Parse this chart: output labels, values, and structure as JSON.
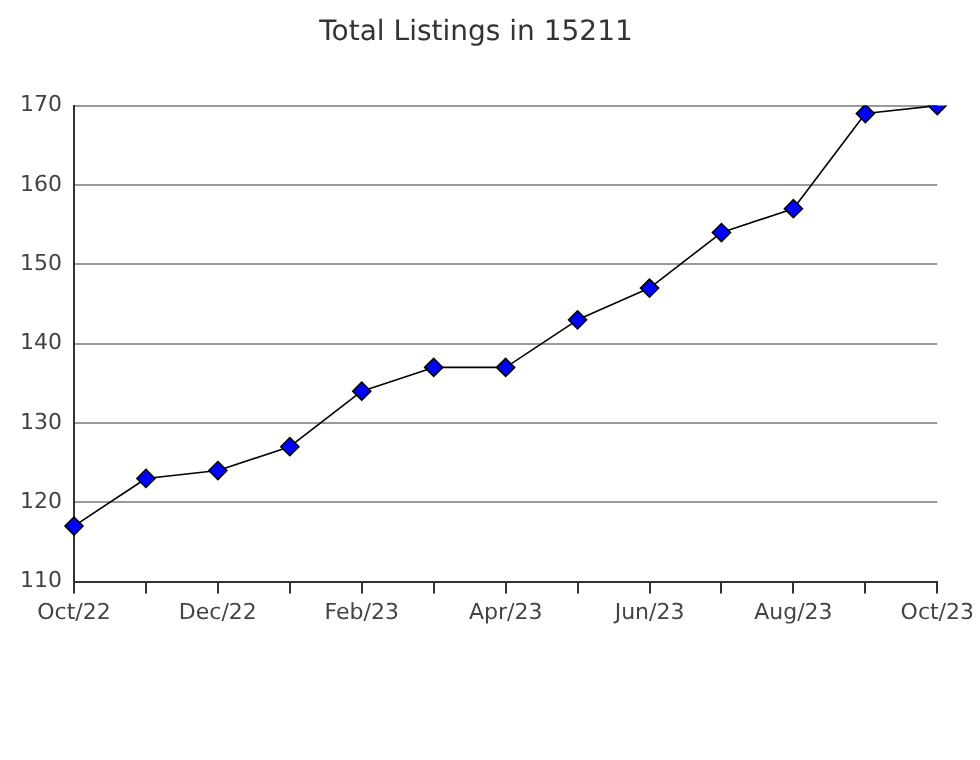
{
  "chart_data": {
    "type": "line",
    "title": "Total Listings in 15211",
    "categories": [
      "Oct/22",
      null,
      "Dec/22",
      null,
      "Feb/23",
      null,
      "Apr/23",
      null,
      "Jun/23",
      null,
      "Aug/23",
      null,
      "Oct/23"
    ],
    "series": [
      {
        "color": "#0000ff",
        "values": [
          117,
          123,
          124,
          127,
          134,
          137,
          137,
          143,
          147,
          154,
          157,
          169,
          170
        ]
      }
    ],
    "ylim": [
      110,
      170
    ],
    "yticks": [
      110,
      120,
      130,
      140,
      150,
      160,
      170
    ],
    "grid": "y",
    "legend": false,
    "marker": "diamond",
    "line_style": "solid"
  }
}
